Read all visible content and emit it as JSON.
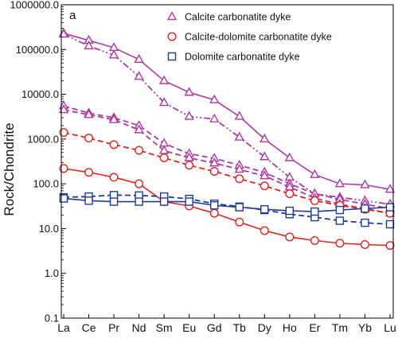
{
  "chart_data": {
    "type": "line",
    "panel_label": "a",
    "ylabel": "Rock/Chondrite",
    "yscale": "log",
    "ylim": [
      0.1,
      1000000
    ],
    "y_ticks": [
      "0.1",
      "1.0",
      "10.0",
      "100.0",
      "1000.0",
      "10000.0",
      "100000.0",
      "1000000.0"
    ],
    "categories": [
      "La",
      "Ce",
      "Pr",
      "Nd",
      "Sm",
      "Eu",
      "Gd",
      "Tb",
      "Dy",
      "Ho",
      "Er",
      "Tm",
      "Yb",
      "Lu"
    ],
    "legend": [
      {
        "label": "Calcite carbonatite dyke",
        "marker": "triangle",
        "color": "#b0389e"
      },
      {
        "label": "Calcite-dolomite carbonatite dyke",
        "marker": "circle",
        "color": "#e3231e"
      },
      {
        "label": "Dolomite carbonatite dyke",
        "marker": "square",
        "color": "#1f3b96"
      }
    ],
    "series": [
      {
        "group": 0,
        "dash": "solid",
        "values": [
          230000,
          160000,
          110000,
          60000,
          20000,
          11000,
          7500,
          3200,
          1000,
          380,
          160,
          100,
          95,
          75
        ]
      },
      {
        "group": 0,
        "dash": "dashdotdot",
        "values": [
          220000,
          120000,
          75000,
          25000,
          6500,
          3200,
          2800,
          1100,
          400,
          140,
          60,
          50,
          42,
          35
        ]
      },
      {
        "group": 0,
        "dash": "dash",
        "values": [
          5500,
          3800,
          3000,
          2000,
          800,
          470,
          370,
          260,
          180,
          100,
          60,
          45,
          35,
          28
        ]
      },
      {
        "group": 0,
        "dash": "dash",
        "values": [
          4500,
          3500,
          2700,
          1600,
          550,
          380,
          290,
          210,
          150,
          85,
          48,
          35,
          28,
          22
        ]
      },
      {
        "group": 1,
        "dash": "dash",
        "values": [
          1400,
          1050,
          750,
          560,
          380,
          260,
          190,
          130,
          90,
          60,
          42,
          33,
          27,
          22
        ]
      },
      {
        "group": 1,
        "dash": "solid",
        "values": [
          220,
          180,
          140,
          100,
          40,
          32,
          22,
          14,
          9,
          6.5,
          5.4,
          4.7,
          4.4,
          4.2
        ]
      },
      {
        "group": 2,
        "dash": "dash",
        "values": [
          50,
          52,
          56,
          55,
          52,
          46,
          36,
          31,
          26,
          21,
          18,
          15,
          13.5,
          12.5
        ]
      },
      {
        "group": 2,
        "dash": "solid",
        "values": [
          47,
          42,
          40,
          40,
          40,
          40,
          33,
          30,
          27,
          25,
          24,
          26,
          28,
          30
        ]
      }
    ]
  }
}
